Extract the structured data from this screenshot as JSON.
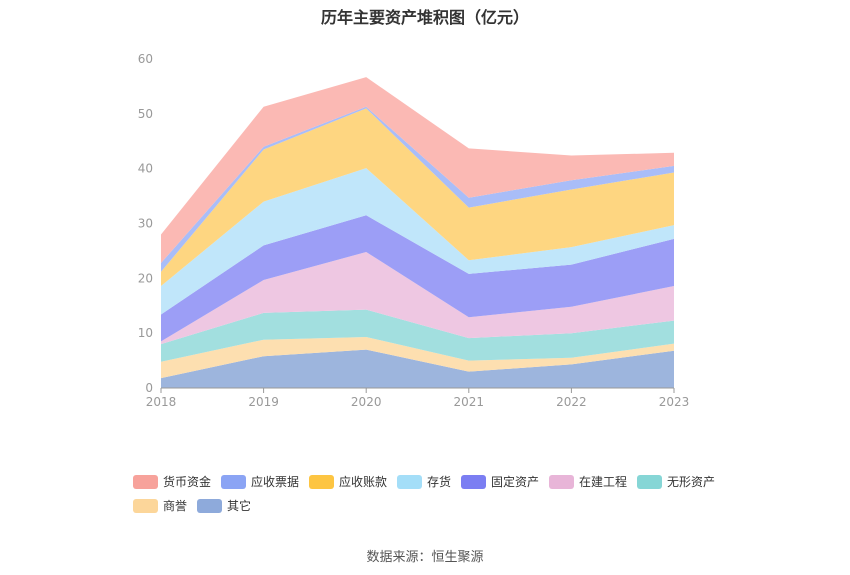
{
  "title": "历年主要资产堆积图（亿元）",
  "source": "数据来源：恒生聚源",
  "chart_data": {
    "type": "area",
    "stacked": true,
    "title": "历年主要资产堆积图（亿元）",
    "categories": [
      "2018",
      "2019",
      "2020",
      "2021",
      "2022",
      "2023"
    ],
    "ylim": [
      0,
      60
    ],
    "yticks": [
      0,
      10,
      20,
      30,
      40,
      50,
      60
    ],
    "grid": false,
    "legend_position": "bottom",
    "series": [
      {
        "name": "其它",
        "color": "#9DB5DD",
        "values": [
          1.8,
          5.8,
          7.0,
          3.0,
          4.3,
          6.8
        ]
      },
      {
        "name": "商誉",
        "color": "#FDDFB0",
        "values": [
          3.0,
          3.0,
          2.3,
          2.0,
          1.2,
          1.3
        ]
      },
      {
        "name": "无形资产",
        "color": "#A2DFDF",
        "values": [
          3.2,
          4.9,
          5.0,
          4.1,
          4.5,
          4.2
        ]
      },
      {
        "name": "在建工程",
        "color": "#EEC7E2",
        "values": [
          0.5,
          6.0,
          10.5,
          3.8,
          4.8,
          6.3
        ]
      },
      {
        "name": "固定资产",
        "color": "#9C9EF6",
        "values": [
          4.9,
          6.3,
          6.7,
          7.9,
          7.7,
          8.6
        ]
      },
      {
        "name": "存货",
        "color": "#C0E6FA",
        "values": [
          5.2,
          8.0,
          8.6,
          2.5,
          3.2,
          2.5
        ]
      },
      {
        "name": "应收账款",
        "color": "#FED681",
        "values": [
          2.6,
          9.5,
          10.9,
          9.6,
          10.5,
          9.6
        ]
      },
      {
        "name": "应收票据",
        "color": "#A9BDF8",
        "values": [
          1.6,
          0.5,
          0.3,
          1.8,
          1.7,
          1.2
        ]
      },
      {
        "name": "货币资金",
        "color": "#FBB9B4",
        "values": [
          5.2,
          7.3,
          5.4,
          9.0,
          4.5,
          2.4
        ]
      }
    ]
  },
  "legend": [
    {
      "name": "货币资金",
      "color": "#F7A29B"
    },
    {
      "name": "应收票据",
      "color": "#8BA4F4"
    },
    {
      "name": "应收账款",
      "color": "#FDC542"
    },
    {
      "name": "存货",
      "color": "#A4DEF8"
    },
    {
      "name": "固定资产",
      "color": "#7B7EF2"
    },
    {
      "name": "在建工程",
      "color": "#E8B5D8"
    },
    {
      "name": "无形资产",
      "color": "#86D6D6"
    },
    {
      "name": "商誉",
      "color": "#FCD69A"
    },
    {
      "name": "其它",
      "color": "#8EAADB"
    }
  ]
}
